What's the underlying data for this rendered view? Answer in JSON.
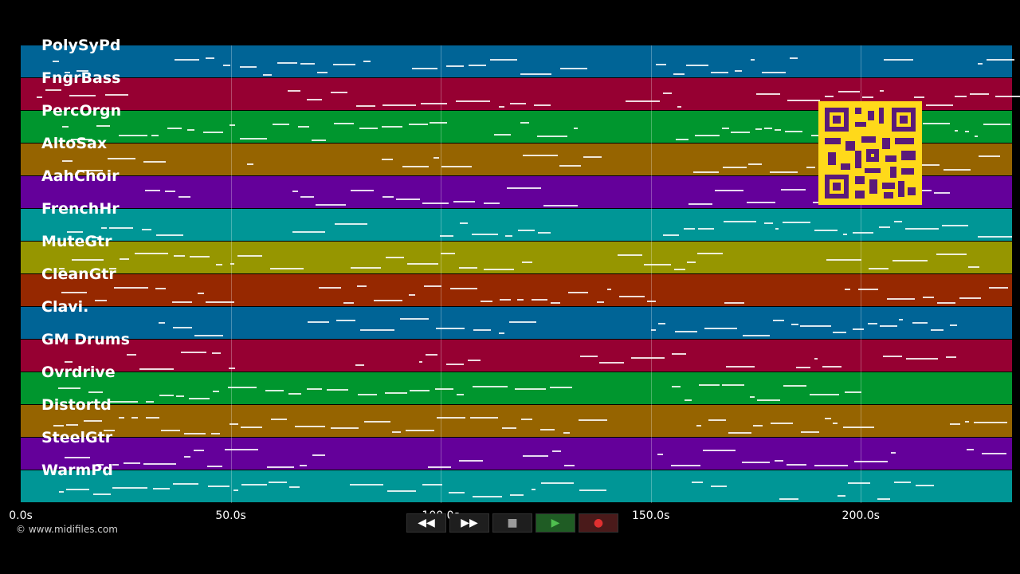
{
  "tracks": [
    {
      "name": "PolySyPd",
      "color": "#006496"
    },
    {
      "name": "FngrBass",
      "color": "#960032"
    },
    {
      "name": "PercOrgn",
      "color": "#00962e"
    },
    {
      "name": "AltoSax",
      "color": "#966400"
    },
    {
      "name": "AahChoir",
      "color": "#64009a"
    },
    {
      "name": "FrenchHr",
      "color": "#009696"
    },
    {
      "name": "MuteGtr",
      "color": "#969600"
    },
    {
      "name": "CleanGtr",
      "color": "#962800"
    },
    {
      "name": "Clavi.",
      "color": "#006496"
    },
    {
      "name": "GM Drums",
      "color": "#960032"
    },
    {
      "name": "Ovrdrive",
      "color": "#00962e"
    },
    {
      "name": "Distortd",
      "color": "#966400"
    },
    {
      "name": "SteelGtr",
      "color": "#64009a"
    },
    {
      "name": "WarmPd",
      "color": "#009696"
    }
  ],
  "timeline": {
    "ticks": [
      "0.0s",
      "50.0s",
      "100.0s",
      "150.0s",
      "200.0s"
    ],
    "tick_values": [
      0,
      50,
      100,
      150,
      200
    ],
    "max_seconds": 236
  },
  "copyright": "© www.midifiles.com",
  "controls": [
    {
      "name": "rewind-button",
      "glyph": "◀◀"
    },
    {
      "name": "fast-forward-button",
      "glyph": "▶▶"
    },
    {
      "name": "stop-button",
      "glyph": "■"
    },
    {
      "name": "play-button",
      "glyph": "▶"
    },
    {
      "name": "record-button",
      "glyph": "●"
    }
  ],
  "qr_icon": "qr-code-icon"
}
